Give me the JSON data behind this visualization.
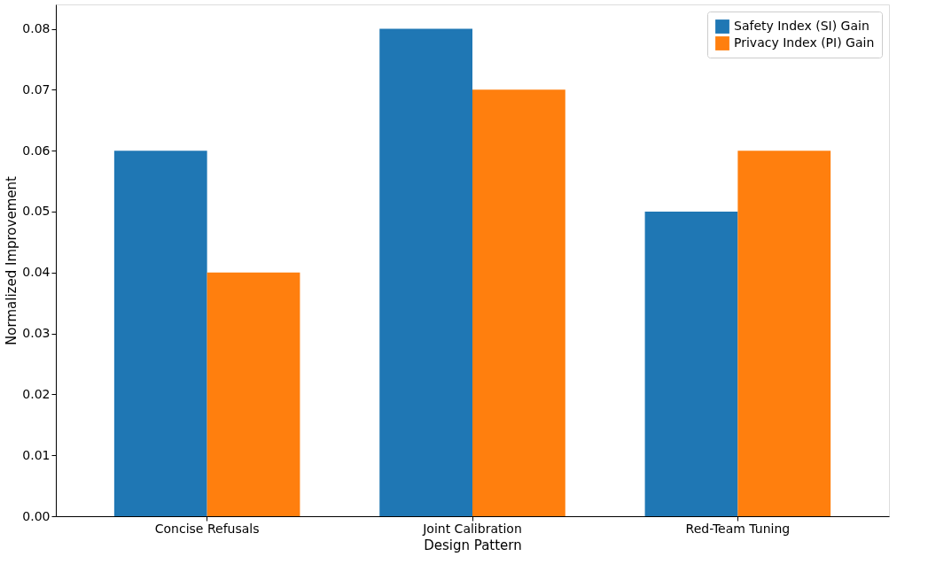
{
  "chart_data": {
    "type": "bar",
    "categories": [
      "Concise Refusals",
      "Joint Calibration",
      "Red-Team Tuning"
    ],
    "series": [
      {
        "name": "Safety Index (SI) Gain",
        "color": "#1f77b4",
        "values": [
          0.06,
          0.08,
          0.05
        ]
      },
      {
        "name": "Privacy Index (PI) Gain",
        "color": "#ff7f0e",
        "values": [
          0.04,
          0.07,
          0.06
        ]
      }
    ],
    "xlabel": "Design Pattern",
    "ylabel": "Normalized Improvement",
    "ylim": [
      0,
      0.084
    ],
    "yticks": [
      {
        "value": 0,
        "label": "0.00"
      },
      0.01,
      0.02,
      0.03,
      0.04,
      0.05,
      0.06,
      0.07,
      0.08
    ],
    "grid": false,
    "legend": "top right"
  }
}
